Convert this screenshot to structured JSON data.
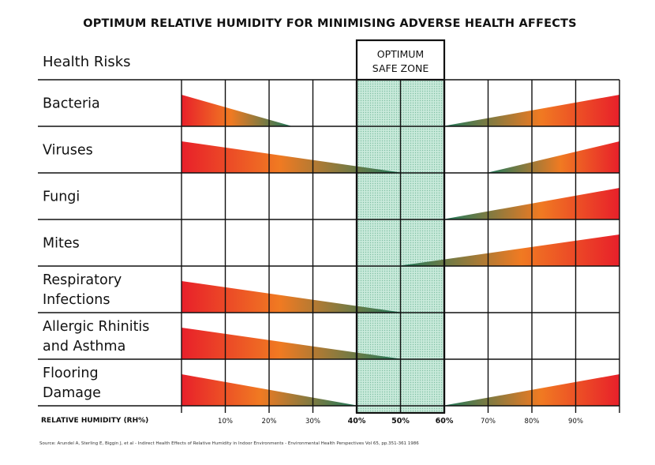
{
  "title": "OPTIMUM RELATIVE HUMIDITY FOR MINIMISING ADVERSE HEALTH AFFECTS",
  "source": "Source: Arundel A, Sterling E, Biggin J, et al - Indirect Health Effects of Relative Humidity in Indoor Environments - Environmental Health Perspectives Vol 65, pp.351-361 1986",
  "colors": {
    "red": "#e8202a",
    "orange": "#f07a22",
    "green": "#1e7a5c",
    "zone": "#bfe4d0",
    "grid": "#111111"
  },
  "chart_data": {
    "type": "table",
    "title": "OPTIMUM RELATIVE HUMIDITY FOR MINIMISING ADVERSE HEALTH AFFECTS",
    "row_header": "Health Risks",
    "xlabel": "RELATIVE HUMIDITY (RH%)",
    "x_range": [
      0,
      100
    ],
    "x_ticks": [
      "10%",
      "20%",
      "30%",
      "40%",
      "50%",
      "60%",
      "70%",
      "80%",
      "90%"
    ],
    "bold_ticks": [
      "40%",
      "50%",
      "60%"
    ],
    "optimum_zone": {
      "label_line1": "OPTIMUM",
      "label_line2": "SAFE ZONE",
      "from": 40,
      "to": 60
    },
    "rows": [
      {
        "label": [
          "Bacteria"
        ],
        "low_end": 25,
        "high_start": 60
      },
      {
        "label": [
          "Viruses"
        ],
        "low_end": 50,
        "high_start": 70
      },
      {
        "label": [
          "Fungi"
        ],
        "low_end": null,
        "high_start": 60
      },
      {
        "label": [
          "Mites"
        ],
        "low_end": null,
        "high_start": 50
      },
      {
        "label": [
          "Respiratory",
          "Infections"
        ],
        "low_end": 50,
        "high_start": null
      },
      {
        "label": [
          "Allergic Rhinitis",
          "and Asthma"
        ],
        "low_end": 50,
        "high_start": null
      },
      {
        "label": [
          "Flooring",
          "Damage"
        ],
        "low_end": 40,
        "high_start": 60
      }
    ]
  }
}
